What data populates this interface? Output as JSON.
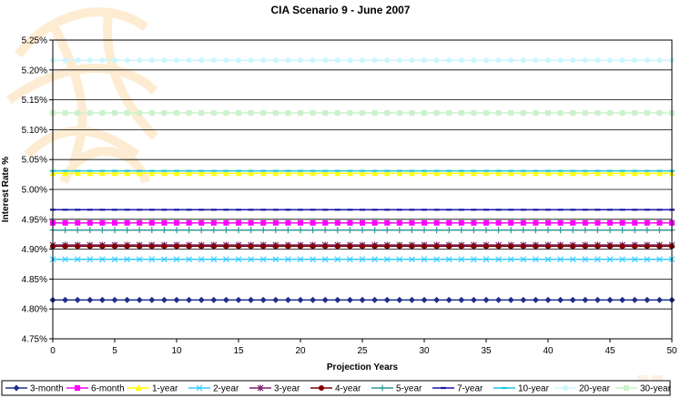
{
  "chart_data": {
    "type": "line",
    "title": "CIA Scenario 9 - June 2007",
    "xlabel": "Projection Years",
    "ylabel": "Interest Rate %",
    "xlim": [
      0,
      50
    ],
    "ylim": [
      4.75,
      5.25
    ],
    "x_ticks": [
      "0",
      "5",
      "10",
      "15",
      "20",
      "25",
      "30",
      "35",
      "40",
      "45",
      "50"
    ],
    "y_ticks": [
      "4.75%",
      "4.80%",
      "4.85%",
      "4.90%",
      "4.95%",
      "5.00%",
      "5.05%",
      "5.10%",
      "5.15%",
      "5.20%",
      "5.25%"
    ],
    "grid": "horizontal",
    "legend_position": "bottom",
    "x_points": 51,
    "series": [
      {
        "name": "3-month",
        "value": 4.815,
        "color": "#1f2d8a",
        "marker": "diamond"
      },
      {
        "name": "6-month",
        "value": 4.944,
        "color": "#ff00ff",
        "marker": "square"
      },
      {
        "name": "1-year",
        "value": 5.027,
        "color": "#ffff00",
        "marker": "triangle"
      },
      {
        "name": "2-year",
        "value": 4.883,
        "color": "#33ccff",
        "marker": "x"
      },
      {
        "name": "3-year",
        "value": 4.907,
        "color": "#7a1f6e",
        "marker": "star"
      },
      {
        "name": "4-year",
        "value": 4.905,
        "color": "#7f0000",
        "marker": "circle"
      },
      {
        "name": "5-year",
        "value": 4.932,
        "color": "#339999",
        "marker": "plus"
      },
      {
        "name": "7-year",
        "value": 4.966,
        "color": "#1a1aaa",
        "marker": "dash"
      },
      {
        "name": "10-year",
        "value": 5.031,
        "color": "#22c4e0",
        "marker": "dash"
      },
      {
        "name": "20-year",
        "value": 5.216,
        "color": "#ccf5ff",
        "marker": "circle"
      },
      {
        "name": "30-year",
        "value": 5.128,
        "color": "#ccf2cc",
        "marker": "square"
      }
    ]
  }
}
